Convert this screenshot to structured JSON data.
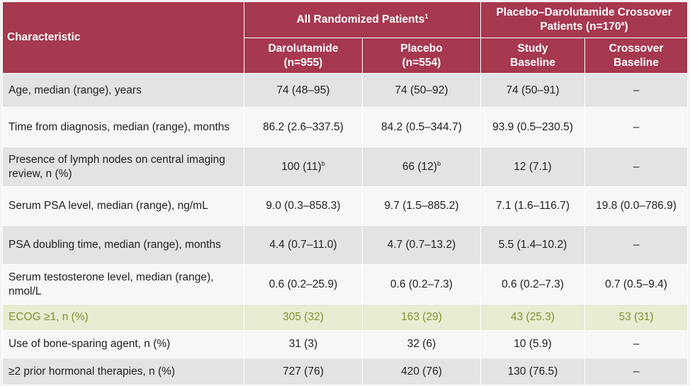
{
  "table": {
    "header": {
      "characteristic": "Characteristic",
      "group_all": "All Randomized Patients",
      "group_all_sup": "1",
      "group_crossover": "Placebo–Darolutamide Crossover Patients (n=170",
      "group_crossover_sup": "a",
      "group_crossover_tail": ")",
      "sub": [
        {
          "line1": "Darolutamide",
          "line2": "(n=955)"
        },
        {
          "line1": "Placebo",
          "line2": "(n=554)"
        },
        {
          "line1": "Study",
          "line2": "Baseline"
        },
        {
          "line1": "Crossover",
          "line2": "Baseline"
        }
      ]
    },
    "rows": [
      {
        "label": "Age, median (range), years",
        "v1": "74 (48–95)",
        "v2": "74 (50–92)",
        "v3": "74 (50–91)",
        "v4": "–"
      },
      {
        "label": "Time from diagnosis, median (range), months",
        "v1": "86.2 (2.6–337.5)",
        "v2": "84.2 (0.5–344.7)",
        "v3": "93.9 (0.5–230.5)",
        "v4": "–"
      },
      {
        "label": "Presence of lymph nodes on central imaging review, n (%)",
        "v1": "100 (11)",
        "v1_sup": "b",
        "v2": "66 (12)",
        "v2_sup": "b",
        "v3": "12 (7.1)",
        "v4": "–"
      },
      {
        "label": "Serum PSA level, median (range), ng/mL",
        "v1": "9.0 (0.3–858.3)",
        "v2": "9.7 (1.5–885.2)",
        "v3": "7.1 (1.6–116.7)",
        "v4": "19.8 (0.0–786.9)"
      },
      {
        "label": "PSA doubling time, median (range), months",
        "v1": "4.4 (0.7–11.0)",
        "v2": "4.7 (0.7–13.2)",
        "v3": "5.5 (1.4–10.2)",
        "v4": "–"
      },
      {
        "label": "Serum testosterone level, median (range), nmol/L",
        "v1": "0.6 (0.2–25.9)",
        "v2": "0.6 (0.2–7.3)",
        "v3": "0.6 (0.2–7.3)",
        "v4": "0.7 (0.5–9.4)"
      },
      {
        "label": "ECOG ≥1, n (%)",
        "v1": "305 (32)",
        "v2": "163 (29)",
        "v3": "43 (25.3)",
        "v4": "53 (31)"
      },
      {
        "label": "Use of bone-sparing agent, n (%)",
        "v1": "31 (3)",
        "v2": "32 (6)",
        "v3": "10 (5.9)",
        "v4": "–"
      },
      {
        "label": "≥2 prior hormonal therapies, n (%)",
        "v1": "727 (76)",
        "v2": "420 (76)",
        "v3": "130 (76.5)",
        "v4": "–"
      }
    ]
  },
  "colors": {
    "header_bg": "#a6384f",
    "header_text": "#ffffff",
    "row_odd": "#e3e3e3",
    "row_even": "#f7f7f7",
    "highlight_bg": "#e8ecd2",
    "highlight_text": "#7e9530"
  }
}
